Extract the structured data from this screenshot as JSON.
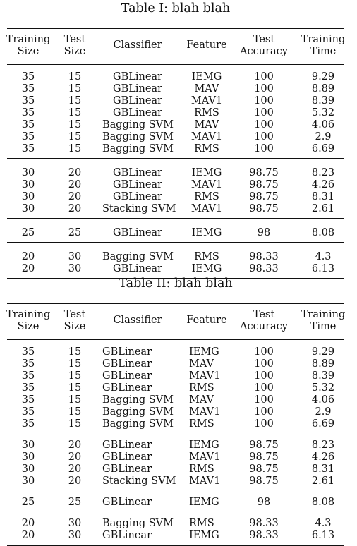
{
  "tables": [
    {
      "caption": "Table I: blah blah",
      "headers": [
        [
          "Training",
          "Size"
        ],
        [
          "Test",
          "Size"
        ],
        [
          "Classifier"
        ],
        [
          "Feature"
        ],
        [
          "Test",
          "Accuracy"
        ],
        [
          "Training",
          "Time"
        ]
      ],
      "groups": [
        [
          [
            "35",
            "15",
            "GBLinear",
            "IEMG",
            "100",
            "9.29"
          ],
          [
            "35",
            "15",
            "GBLinear",
            "MAV",
            "100",
            "8.89"
          ],
          [
            "35",
            "15",
            "GBLinear",
            "MAV1",
            "100",
            "8.39"
          ],
          [
            "35",
            "15",
            "GBLinear",
            "RMS",
            "100",
            "5.32"
          ],
          [
            "35",
            "15",
            "Bagging SVM",
            "MAV",
            "100",
            "4.06"
          ],
          [
            "35",
            "15",
            "Bagging SVM",
            "MAV1",
            "100",
            "2.9"
          ],
          [
            "35",
            "15",
            "Bagging SVM",
            "RMS",
            "100",
            "6.69"
          ]
        ],
        [
          [
            "30",
            "20",
            "GBLinear",
            "IEMG",
            "98.75",
            "8.23"
          ],
          [
            "30",
            "20",
            "GBLinear",
            "MAV1",
            "98.75",
            "4.26"
          ],
          [
            "30",
            "20",
            "GBLinear",
            "RMS",
            "98.75",
            "8.31"
          ],
          [
            "30",
            "20",
            "Stacking SVM",
            "MAV1",
            "98.75",
            "2.61"
          ]
        ],
        [
          [
            "25",
            "25",
            "GBLinear",
            "IEMG",
            "98",
            "8.08"
          ]
        ],
        [
          [
            "20",
            "30",
            "Bagging SVM",
            "RMS",
            "98.33",
            "4.3"
          ],
          [
            "20",
            "30",
            "GBLinear",
            "IEMG",
            "98.33",
            "6.13"
          ]
        ]
      ]
    },
    {
      "caption": "Table II: blah blah",
      "headers": [
        [
          "Training",
          "Size"
        ],
        [
          "Test",
          "Size"
        ],
        [
          "Classifier"
        ],
        [
          "Feature"
        ],
        [
          "Test",
          "Accuracy"
        ],
        [
          "Training",
          "Time"
        ]
      ],
      "groups": [
        [
          [
            "35",
            "15",
            "GBLinear",
            "IEMG",
            "100",
            "9.29"
          ],
          [
            "35",
            "15",
            "GBLinear",
            "MAV",
            "100",
            "8.89"
          ],
          [
            "35",
            "15",
            "GBLinear",
            "MAV1",
            "100",
            "8.39"
          ],
          [
            "35",
            "15",
            "GBLinear",
            "RMS",
            "100",
            "5.32"
          ],
          [
            "35",
            "15",
            "Bagging SVM",
            "MAV",
            "100",
            "4.06"
          ],
          [
            "35",
            "15",
            "Bagging SVM",
            "MAV1",
            "100",
            "2.9"
          ],
          [
            "35",
            "15",
            "Bagging SVM",
            "RMS",
            "100",
            "6.69"
          ]
        ],
        [
          [
            "30",
            "20",
            "GBLinear",
            "IEMG",
            "98.75",
            "8.23"
          ],
          [
            "30",
            "20",
            "GBLinear",
            "MAV1",
            "98.75",
            "4.26"
          ],
          [
            "30",
            "20",
            "GBLinear",
            "RMS",
            "98.75",
            "8.31"
          ],
          [
            "30",
            "20",
            "Stacking SVM",
            "MAV1",
            "98.75",
            "2.61"
          ]
        ],
        [
          [
            "25",
            "25",
            "GBLinear",
            "IEMG",
            "98",
            "8.08"
          ]
        ],
        [
          [
            "20",
            "30",
            "Bagging SVM",
            "RMS",
            "98.33",
            "4.3"
          ],
          [
            "20",
            "30",
            "GBLinear",
            "IEMG",
            "98.33",
            "6.13"
          ]
        ]
      ]
    }
  ]
}
